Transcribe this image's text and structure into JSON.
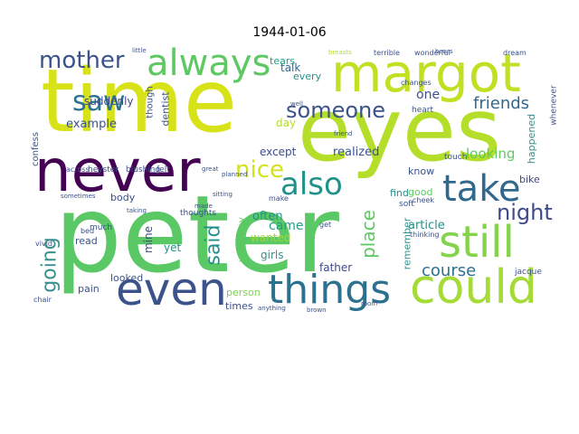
{
  "title": "1944-01-06",
  "words": [
    {
      "text": "peter",
      "color": "#5ac864"
    },
    {
      "text": "time",
      "color": "#d8e219"
    },
    {
      "text": "eyes",
      "color": "#b5de2b"
    },
    {
      "text": "margot",
      "color": "#c2df23"
    },
    {
      "text": "never",
      "color": "#440154"
    },
    {
      "text": "even",
      "color": "#3b528b"
    },
    {
      "text": "could",
      "color": "#a5db36"
    },
    {
      "text": "still",
      "color": "#84d44b"
    },
    {
      "text": "things",
      "color": "#2c728e"
    },
    {
      "text": "always",
      "color": "#5ec962"
    },
    {
      "text": "take",
      "color": "#31688e"
    },
    {
      "text": "also",
      "color": "#21918c"
    },
    {
      "text": "saw",
      "color": "#2c728e"
    },
    {
      "text": "mother",
      "color": "#3b528b"
    },
    {
      "text": "nice",
      "color": "#d2e21b"
    },
    {
      "text": "someone",
      "color": "#3b528b"
    },
    {
      "text": "night",
      "color": "#3e4a89"
    },
    {
      "text": "going",
      "color": "#3b8f8c"
    },
    {
      "text": "said",
      "color": "#21918c"
    },
    {
      "text": "place",
      "color": "#5ec962"
    },
    {
      "text": "friends",
      "color": "#31688e"
    },
    {
      "text": "course",
      "color": "#2c728e"
    },
    {
      "text": "example",
      "color": "#3b528b"
    },
    {
      "text": "looking",
      "color": "#5ec962"
    },
    {
      "text": "suddenly",
      "color": "#3e4a89"
    },
    {
      "text": "realized",
      "color": "#3b528b"
    },
    {
      "text": "tears",
      "color": "#1f9e89"
    },
    {
      "text": "talk",
      "color": "#31688e"
    },
    {
      "text": "every",
      "color": "#21918c"
    },
    {
      "text": "one",
      "color": "#3b528b"
    },
    {
      "text": "day",
      "color": "#b5de2b"
    },
    {
      "text": "except",
      "color": "#3e4a89"
    },
    {
      "text": "came",
      "color": "#1f9e89"
    },
    {
      "text": "often",
      "color": "#21918c"
    },
    {
      "text": "wanted",
      "color": "#a0da39"
    },
    {
      "text": "girls",
      "color": "#3b8f8c"
    },
    {
      "text": "article",
      "color": "#21918c"
    },
    {
      "text": "happened",
      "color": "#3b8f8c"
    },
    {
      "text": "find",
      "color": "#21918c"
    },
    {
      "text": "know",
      "color": "#3b528b"
    },
    {
      "text": "good",
      "color": "#5ec962"
    },
    {
      "text": "bike",
      "color": "#3e4a89"
    },
    {
      "text": "father",
      "color": "#3e4a89"
    },
    {
      "text": "read",
      "color": "#3b528b"
    },
    {
      "text": "yet",
      "color": "#21918c"
    },
    {
      "text": "mine",
      "color": "#3e4a89"
    },
    {
      "text": "body",
      "color": "#3b528b"
    },
    {
      "text": "looked",
      "color": "#3b528b"
    },
    {
      "text": "person",
      "color": "#7ad151"
    },
    {
      "text": "times",
      "color": "#3b528b"
    },
    {
      "text": "pain",
      "color": "#3b528b"
    },
    {
      "text": "remember",
      "color": "#3b8f8c"
    },
    {
      "text": "dentist",
      "color": "#3b528b"
    },
    {
      "text": "confess",
      "color": "#3b528b"
    },
    {
      "text": "though",
      "color": "#3b528b"
    },
    {
      "text": "yesterday",
      "color": "#5ec962"
    },
    {
      "text": "whenever",
      "color": "#3b528b"
    },
    {
      "text": "heart",
      "color": "#3b528b"
    },
    {
      "text": "thoughts",
      "color": "#3b528b"
    },
    {
      "text": "soft",
      "color": "#3b528b"
    },
    {
      "text": "touch",
      "color": "#3b528b"
    },
    {
      "text": "heyster",
      "color": "#3b528b"
    },
    {
      "text": "blushing",
      "color": "#3b528b"
    },
    {
      "text": "felt",
      "color": "#3b528b"
    },
    {
      "text": "wonderful",
      "color": "#3b528b"
    },
    {
      "text": "terrible",
      "color": "#3b528b"
    },
    {
      "text": "dream",
      "color": "#3b528b"
    },
    {
      "text": "changes",
      "color": "#3b528b"
    },
    {
      "text": "breasts",
      "color": "#b5de2b"
    },
    {
      "text": "across",
      "color": "#3b528b"
    },
    {
      "text": "great",
      "color": "#3b528b"
    },
    {
      "text": "jacque",
      "color": "#3b528b"
    },
    {
      "text": "much",
      "color": "#3b528b"
    },
    {
      "text": "vivid",
      "color": "#3b528b"
    },
    {
      "text": "chair",
      "color": "#3b528b"
    },
    {
      "text": "bed",
      "color": "#3b528b"
    },
    {
      "text": "sometimes",
      "color": "#3b528b"
    },
    {
      "text": "make",
      "color": "#3b528b"
    },
    {
      "text": "get",
      "color": "#3b528b"
    },
    {
      "text": "thinking",
      "color": "#3b528b"
    },
    {
      "text": "cheek",
      "color": "#3b528b"
    },
    {
      "text": "made",
      "color": "#3b528b"
    },
    {
      "text": "sitting",
      "color": "#3b528b"
    },
    {
      "text": "planned",
      "color": "#3b528b"
    },
    {
      "text": "room",
      "color": "#3b528b"
    },
    {
      "text": "brown",
      "color": "#3b528b"
    },
    {
      "text": "anything",
      "color": "#3b528b"
    },
    {
      "text": "taking",
      "color": "#3b528b"
    },
    {
      "text": "well",
      "color": "#3b528b"
    },
    {
      "text": "friend",
      "color": "#3b528b"
    },
    {
      "text": "little",
      "color": "#3b528b"
    },
    {
      "text": "hears",
      "color": "#3b528b"
    }
  ]
}
